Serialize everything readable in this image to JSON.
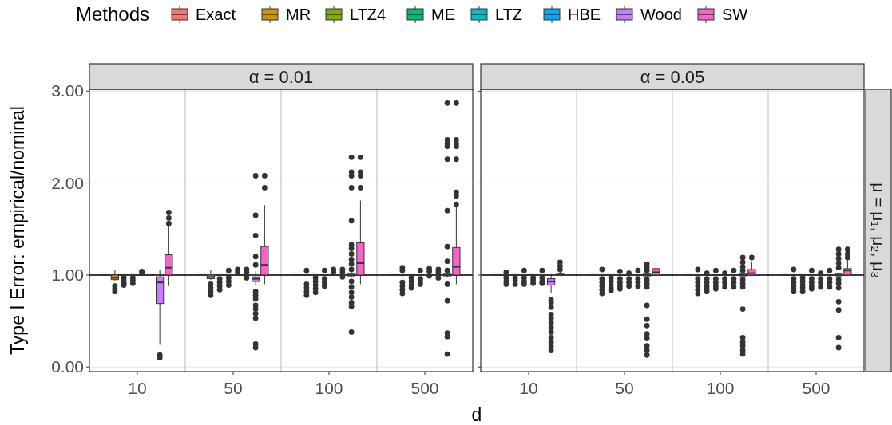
{
  "chart_data": [
    {
      "type": "box",
      "title": "α = 0.01",
      "xlabel": "d",
      "ylabel": "Type I Error: empirical/nominal",
      "legend_title": "Methods",
      "legend": "top",
      "grid": true,
      "categories": [
        "10",
        "50",
        "100",
        "500"
      ],
      "ylim": [
        -0.05,
        3.02
      ],
      "yticks": [
        {
          "value": 0,
          "label": "0.00"
        },
        {
          "value": 1,
          "label": "1.00"
        },
        {
          "value": 2,
          "label": "2.00"
        },
        {
          "value": 3,
          "label": "3.00"
        }
      ],
      "ref_lines": [
        {
          "axis": "y",
          "value": 1,
          "color": "#000000"
        }
      ],
      "series": [
        {
          "name": "Exact",
          "color": "#f8766d",
          "boxes": [
            {
              "low": 1,
              "q1": 1,
              "median": 1,
              "q3": 1,
              "high": 1
            },
            {
              "low": 1,
              "q1": 1,
              "median": 1,
              "q3": 1,
              "high": 1
            },
            {
              "low": 1,
              "q1": 1,
              "median": 1,
              "q3": 1,
              "high": 1
            },
            {
              "low": 1,
              "q1": 1,
              "median": 1,
              "q3": 1,
              "high": 1
            }
          ]
        },
        {
          "name": "MR",
          "color": "#cd9600",
          "boxes": [
            {
              "low": 0.94,
              "q1": 0.95,
              "median": 0.97,
              "q3": 1,
              "high": 1.06,
              "outliers": [
                0.88,
                0.85,
                0.82
              ]
            },
            {
              "low": 0.95,
              "q1": 0.96,
              "median": 0.98,
              "q3": 1,
              "high": 1.06,
              "outliers": [
                0.9,
                0.86,
                0.82,
                0.78
              ]
            },
            {
              "low": 0.99,
              "q1": 1,
              "median": 1,
              "q3": 1,
              "high": 1.03,
              "outliers": [
                1.05,
                0.9,
                0.86,
                0.82,
                0.78
              ]
            },
            {
              "low": 0.98,
              "q1": 1,
              "median": 1,
              "q3": 1,
              "high": 1.02,
              "outliers": [
                1.08,
                1.05,
                0.92,
                0.88,
                0.84,
                0.8
              ]
            }
          ]
        },
        {
          "name": "LTZ4",
          "color": "#7cae00",
          "boxes": [
            {
              "low": 1,
              "q1": 1,
              "median": 1,
              "q3": 1,
              "high": 1,
              "outliers": [
                0.97,
                0.94,
                0.91,
                0.89
              ]
            },
            {
              "low": 1,
              "q1": 1,
              "median": 1,
              "q3": 1,
              "high": 1,
              "outliers": [
                0.96,
                0.92,
                0.88,
                0.84
              ]
            },
            {
              "low": 1,
              "q1": 1,
              "median": 1,
              "q3": 1,
              "high": 1,
              "outliers": [
                0.97,
                0.93,
                0.89,
                0.85,
                0.81
              ]
            },
            {
              "low": 1,
              "q1": 1,
              "median": 1,
              "q3": 1,
              "high": 1,
              "outliers": [
                0.97,
                0.93,
                0.89,
                0.86
              ]
            }
          ]
        },
        {
          "name": "ME",
          "color": "#00be67",
          "boxes": [
            {
              "low": 1,
              "q1": 1,
              "median": 1,
              "q3": 1,
              "high": 1,
              "outliers": [
                0.97,
                0.94,
                0.91
              ]
            },
            {
              "low": 1,
              "q1": 1,
              "median": 1,
              "q3": 1,
              "high": 1,
              "outliers": [
                1.05,
                0.97,
                0.93,
                0.89
              ]
            },
            {
              "low": 1,
              "q1": 1,
              "median": 1,
              "q3": 1,
              "high": 1,
              "outliers": [
                1.05,
                0.96,
                0.92,
                0.88
              ]
            },
            {
              "low": 1,
              "q1": 1,
              "median": 1,
              "q3": 1,
              "high": 1,
              "outliers": [
                1.05,
                0.96,
                0.93,
                0.9
              ]
            }
          ]
        },
        {
          "name": "LTZ",
          "color": "#00bfc4",
          "boxes": [
            {
              "low": 1,
              "q1": 1,
              "median": 1,
              "q3": 1,
              "high": 1,
              "outliers": [
                1.02,
                1.04
              ]
            },
            {
              "low": 1,
              "q1": 1,
              "median": 1,
              "q3": 1,
              "high": 1,
              "outliers": [
                1.06,
                1.03
              ]
            },
            {
              "low": 1,
              "q1": 1,
              "median": 1,
              "q3": 1,
              "high": 1,
              "outliers": [
                1.06,
                1.03
              ]
            },
            {
              "low": 1,
              "q1": 1,
              "median": 1,
              "q3": 1,
              "high": 1,
              "outliers": [
                1.07,
                1.04,
                0.99
              ]
            }
          ]
        },
        {
          "name": "HBE",
          "color": "#00a9ff",
          "boxes": [
            {
              "low": 1,
              "q1": 1,
              "median": 1,
              "q3": 1,
              "high": 1
            },
            {
              "low": 1,
              "q1": 1,
              "median": 1,
              "q3": 1,
              "high": 1,
              "outliers": [
                1.06,
                1.03,
                0.97
              ]
            },
            {
              "low": 1,
              "q1": 1,
              "median": 1,
              "q3": 1,
              "high": 1,
              "outliers": [
                1.06,
                1.03,
                0.98
              ]
            },
            {
              "low": 1,
              "q1": 1,
              "median": 1,
              "q3": 1,
              "high": 1,
              "outliers": [
                1.06,
                1.03,
                0.97
              ]
            }
          ]
        },
        {
          "name": "Wood",
          "color": "#c77cff",
          "boxes": [
            {
              "low": 0.24,
              "q1": 0.69,
              "median": 0.92,
              "q3": 0.98,
              "high": 1.06,
              "outliers": [
                0.13,
                0.1
              ]
            },
            {
              "low": 0.89,
              "q1": 0.93,
              "median": 0.96,
              "q3": 0.98,
              "high": 1.04,
              "outliers": [
                2.08,
                1.65,
                1.43,
                1.2,
                1.11,
                0.82,
                0.78,
                0.74,
                0.67,
                0.63,
                0.58,
                0.53,
                0.25,
                0.21
              ]
            },
            {
              "low": 0.97,
              "q1": 0.99,
              "median": 1,
              "q3": 1.01,
              "high": 1.03,
              "outliers": [
                2.28,
                2.12,
                2.08,
                1.95,
                1.59,
                1.33,
                1.29,
                1.23,
                1.17,
                1.12,
                1.06,
                0.93,
                0.87,
                0.81,
                0.76,
                0.7,
                0.66,
                0.38
              ]
            },
            {
              "low": 0.97,
              "q1": 0.99,
              "median": 1,
              "q3": 1.01,
              "high": 1.03,
              "outliers": [
                2.87,
                2.47,
                2.43,
                2.4,
                2.26,
                1.7,
                1.31,
                1.15,
                1.05,
                0.9,
                0.72,
                0.37,
                0.33,
                0.14
              ]
            }
          ]
        },
        {
          "name": "SW",
          "color": "#ff61cc",
          "boxes": [
            {
              "low": 0.88,
              "q1": 1,
              "median": 1.08,
              "q3": 1.22,
              "high": 1.53,
              "outliers": [
                1.68,
                1.62,
                1.56
              ]
            },
            {
              "low": 0.9,
              "q1": 1,
              "median": 1.11,
              "q3": 1.31,
              "high": 1.76,
              "outliers": [
                2.08,
                1.95
              ]
            },
            {
              "low": 0.9,
              "q1": 1,
              "median": 1.13,
              "q3": 1.35,
              "high": 1.81,
              "outliers": [
                2.28,
                2.12,
                2.08,
                1.95
              ]
            },
            {
              "low": 0.9,
              "q1": 1,
              "median": 1.09,
              "q3": 1.3,
              "high": 1.75,
              "outliers": [
                2.87,
                2.47,
                2.43,
                2.4,
                2.26,
                1.9,
                1.86,
                1.77
              ]
            }
          ]
        }
      ]
    },
    {
      "type": "box",
      "title": "α = 0.05",
      "annotations": [
        "μ = μ₁, μ₂, μ₃"
      ],
      "grid": true,
      "tick_labels": "x",
      "categories": [
        "10",
        "50",
        "100",
        "500"
      ],
      "ylim": [
        -0.05,
        3.02
      ],
      "yticks": [
        {
          "value": 0,
          "label": null
        },
        {
          "value": 1,
          "label": null
        },
        {
          "value": 2,
          "label": null
        },
        {
          "value": 3,
          "label": null
        }
      ],
      "ref_lines": [
        {
          "axis": "y",
          "value": 1,
          "color": "#000000"
        }
      ],
      "series": [
        {
          "color": "#f8766d",
          "boxes": [
            {
              "low": 1,
              "q1": 1,
              "median": 1,
              "q3": 1,
              "high": 1
            },
            {
              "low": 1,
              "q1": 1,
              "median": 1,
              "q3": 1,
              "high": 1
            },
            {
              "low": 1,
              "q1": 1,
              "median": 1,
              "q3": 1,
              "high": 1
            },
            {
              "low": 1,
              "q1": 1,
              "median": 1,
              "q3": 1,
              "high": 1
            }
          ]
        },
        {
          "color": "#cd9600",
          "boxes": [
            {
              "low": 1,
              "q1": 1,
              "median": 1,
              "q3": 1,
              "high": 1,
              "outliers": [
                1.03,
                0.97,
                0.93,
                0.9
              ]
            },
            {
              "low": 1,
              "q1": 1,
              "median": 1,
              "q3": 1,
              "high": 1,
              "outliers": [
                1.06,
                0.96,
                0.92,
                0.88,
                0.84,
                0.8
              ]
            },
            {
              "low": 1,
              "q1": 1,
              "median": 1,
              "q3": 1,
              "high": 1,
              "outliers": [
                1.06,
                0.96,
                0.92,
                0.88,
                0.84,
                0.8
              ]
            },
            {
              "low": 1,
              "q1": 1,
              "median": 1,
              "q3": 1,
              "high": 1,
              "outliers": [
                1.06,
                0.96,
                0.92,
                0.88,
                0.85,
                0.82
              ]
            }
          ]
        },
        {
          "color": "#7cae00",
          "boxes": [
            {
              "low": 1,
              "q1": 1,
              "median": 1,
              "q3": 1,
              "high": 1,
              "outliers": [
                0.97,
                0.94,
                0.9
              ]
            },
            {
              "low": 1,
              "q1": 1,
              "median": 1,
              "q3": 1,
              "high": 1,
              "outliers": [
                0.97,
                0.93,
                0.89,
                0.86,
                0.83
              ]
            },
            {
              "low": 1,
              "q1": 1,
              "median": 1,
              "q3": 1,
              "high": 1,
              "outliers": [
                1.02,
                0.96,
                0.92,
                0.88,
                0.85,
                0.82
              ]
            },
            {
              "low": 1,
              "q1": 1,
              "median": 1,
              "q3": 1,
              "high": 1,
              "outliers": [
                0.97,
                0.93,
                0.89,
                0.86,
                0.82
              ]
            }
          ]
        },
        {
          "color": "#00be67",
          "boxes": [
            {
              "low": 1,
              "q1": 1,
              "median": 1,
              "q3": 1,
              "high": 1,
              "outliers": [
                1.05,
                0.97,
                0.93,
                0.9
              ]
            },
            {
              "low": 1,
              "q1": 1,
              "median": 1,
              "q3": 1,
              "high": 1,
              "outliers": [
                1.04,
                0.96,
                0.92,
                0.88,
                0.85
              ]
            },
            {
              "low": 1,
              "q1": 1,
              "median": 1,
              "q3": 1,
              "high": 1,
              "outliers": [
                1.05,
                0.96,
                0.92,
                0.88,
                0.85
              ]
            },
            {
              "low": 1,
              "q1": 1,
              "median": 1,
              "q3": 1,
              "high": 1,
              "outliers": [
                1.05,
                0.96,
                0.92,
                0.88,
                0.85
              ]
            }
          ]
        },
        {
          "color": "#00bfc4",
          "boxes": [
            {
              "low": 1,
              "q1": 1,
              "median": 1,
              "q3": 1,
              "high": 1,
              "outliers": [
                0.97,
                0.94,
                0.91
              ]
            },
            {
              "low": 1,
              "q1": 1,
              "median": 1,
              "q3": 1,
              "high": 1,
              "outliers": [
                1.02,
                0.96,
                0.92,
                0.88
              ]
            },
            {
              "low": 1,
              "q1": 1,
              "median": 1,
              "q3": 1,
              "high": 1,
              "outliers": [
                1.02,
                0.96,
                0.92,
                0.87
              ]
            },
            {
              "low": 1,
              "q1": 1,
              "median": 1,
              "q3": 1,
              "high": 1,
              "outliers": [
                1.02,
                0.96,
                0.92,
                0.87
              ]
            }
          ]
        },
        {
          "color": "#00a9ff",
          "boxes": [
            {
              "low": 1,
              "q1": 1,
              "median": 1,
              "q3": 1,
              "high": 1,
              "outliers": [
                1.05,
                0.97,
                0.93,
                0.91
              ]
            },
            {
              "low": 1,
              "q1": 1,
              "median": 1,
              "q3": 1,
              "high": 1,
              "outliers": [
                1.05,
                0.96,
                0.92,
                0.88
              ]
            },
            {
              "low": 1,
              "q1": 1,
              "median": 1,
              "q3": 1,
              "high": 1,
              "outliers": [
                1.05,
                0.96,
                0.92,
                0.87
              ]
            },
            {
              "low": 1,
              "q1": 1,
              "median": 1,
              "q3": 1,
              "high": 1,
              "outliers": [
                1.05,
                0.96,
                0.92,
                0.87
              ]
            }
          ]
        },
        {
          "color": "#c77cff",
          "boxes": [
            {
              "low": 0.8,
              "q1": 0.89,
              "median": 0.93,
              "q3": 0.96,
              "high": 1.01,
              "outliers": [
                0.73,
                0.7,
                0.65,
                0.57,
                0.53,
                0.48,
                0.43,
                0.38,
                0.32,
                0.27,
                0.22,
                0.18
              ]
            },
            {
              "low": 0.97,
              "q1": 0.99,
              "median": 1,
              "q3": 1.01,
              "high": 1.03,
              "outliers": [
                1.12,
                1.08,
                1.05,
                0.95,
                0.91,
                0.87,
                0.67,
                0.52,
                0.45,
                0.36,
                0.31,
                0.23,
                0.18,
                0.13
              ]
            },
            {
              "low": 0.97,
              "q1": 0.99,
              "median": 1,
              "q3": 1.01,
              "high": 1.03,
              "outliers": [
                1.19,
                1.14,
                1.09,
                1.05,
                0.95,
                0.91,
                0.87,
                0.63,
                0.32,
                0.27,
                0.23,
                0.18,
                0.14
              ]
            },
            {
              "low": 0.97,
              "q1": 0.99,
              "median": 1,
              "q3": 1.01,
              "high": 1.03,
              "outliers": [
                1.28,
                1.23,
                1.18,
                1.13,
                1.08,
                0.95,
                0.91,
                0.86,
                0.71,
                0.62,
                0.32,
                0.21
              ]
            }
          ]
        },
        {
          "color": "#ff61cc",
          "boxes": [
            {
              "low": 0.99,
              "q1": 1,
              "median": 1,
              "q3": 1.01,
              "high": 1.04,
              "outliers": [
                1.14,
                1.1,
                1.06
              ]
            },
            {
              "low": 0.99,
              "q1": 1,
              "median": 1.03,
              "q3": 1.07,
              "high": 1.13
            },
            {
              "low": 0.99,
              "q1": 1,
              "median": 1.02,
              "q3": 1.06,
              "high": 1.15,
              "outliers": [
                1.19
              ]
            },
            {
              "low": 0.99,
              "q1": 1,
              "median": 1.05,
              "q3": 1.07,
              "high": 1.16,
              "outliers": [
                1.28,
                1.23,
                1.19
              ]
            }
          ]
        }
      ]
    }
  ]
}
